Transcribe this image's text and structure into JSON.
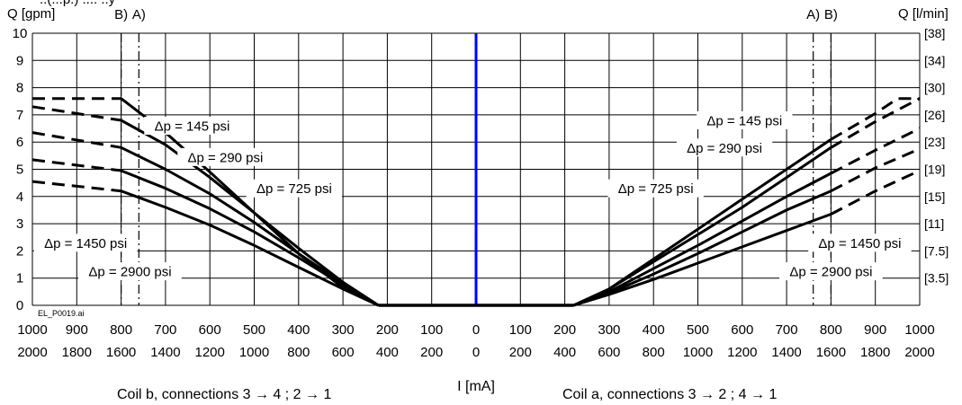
{
  "chart_data": {
    "type": "line",
    "top_clip_text": "..(...p.) .... ..y",
    "y_left_title": "Q [gpm]",
    "y_right_title": "Q [l/min]",
    "y_left_ticks": [
      "0",
      "1",
      "2",
      "3",
      "4",
      "5",
      "6",
      "7",
      "8",
      "9",
      "10"
    ],
    "y_right_ticks": [
      {
        "label": "[3.5]",
        "y": 1
      },
      {
        "label": "[7.5]",
        "y": 2
      },
      {
        "label": "[11]",
        "y": 3
      },
      {
        "label": "[15]",
        "y": 4
      },
      {
        "label": "[19]",
        "y": 5
      },
      {
        "label": "[23]",
        "y": 6
      },
      {
        "label": "[26]",
        "y": 7
      },
      {
        "label": "[30]",
        "y": 8
      },
      {
        "label": "[34]",
        "y": 9
      },
      {
        "label": "[38]",
        "y": 10
      }
    ],
    "ylim": [
      0,
      10
    ],
    "xlim": [
      -1000,
      1000
    ],
    "x_ticks_row1": [
      {
        "x": -1000,
        "label": "1000"
      },
      {
        "x": -900,
        "label": "900"
      },
      {
        "x": -800,
        "label": "800"
      },
      {
        "x": -700,
        "label": "700"
      },
      {
        "x": -600,
        "label": "600"
      },
      {
        "x": -500,
        "label": "500"
      },
      {
        "x": -400,
        "label": "400"
      },
      {
        "x": -300,
        "label": "300"
      },
      {
        "x": -200,
        "label": "200"
      },
      {
        "x": -100,
        "label": "100"
      },
      {
        "x": 0,
        "label": "0"
      },
      {
        "x": 100,
        "label": "100"
      },
      {
        "x": 200,
        "label": "200"
      },
      {
        "x": 300,
        "label": "300"
      },
      {
        "x": 400,
        "label": "400"
      },
      {
        "x": 500,
        "label": "500"
      },
      {
        "x": 600,
        "label": "600"
      },
      {
        "x": 700,
        "label": "700"
      },
      {
        "x": 800,
        "label": "800"
      },
      {
        "x": 900,
        "label": "900"
      },
      {
        "x": 1000,
        "label": "1000"
      }
    ],
    "x_ticks_row2": [
      {
        "x": -1000,
        "label": "2000"
      },
      {
        "x": -900,
        "label": "1800"
      },
      {
        "x": -800,
        "label": "1600"
      },
      {
        "x": -700,
        "label": "1400"
      },
      {
        "x": -600,
        "label": "1200"
      },
      {
        "x": -500,
        "label": "1000"
      },
      {
        "x": -400,
        "label": "800"
      },
      {
        "x": -300,
        "label": "600"
      },
      {
        "x": -200,
        "label": "400"
      },
      {
        "x": -100,
        "label": "200"
      },
      {
        "x": 0,
        "label": "0"
      },
      {
        "x": 100,
        "label": "200"
      },
      {
        "x": 200,
        "label": "400"
      },
      {
        "x": 300,
        "label": "600"
      },
      {
        "x": 400,
        "label": "800"
      },
      {
        "x": 500,
        "label": "1000"
      },
      {
        "x": 600,
        "label": "1200"
      },
      {
        "x": 700,
        "label": "1400"
      },
      {
        "x": 800,
        "label": "1600"
      },
      {
        "x": 900,
        "label": "1800"
      },
      {
        "x": 1000,
        "label": "2000"
      }
    ],
    "xlabel": "I [mA]",
    "coil_b_label": "Coil b, connections 3 → 4 ; 2 → 1",
    "coil_a_label": "Coil a, connections 3 → 2 ; 4 → 1",
    "watermark": "EL_P0019.ai",
    "limit_markers": [
      {
        "label": "B)",
        "x": -800
      },
      {
        "label": "A)",
        "x": -760
      },
      {
        "label": "A)",
        "x": 760
      },
      {
        "label": "B)",
        "x": 800
      }
    ],
    "zero_line_color": "#0000ff",
    "line_color": "#000000",
    "grid": true,
    "series": [
      {
        "name": "Δp = 145 psi",
        "left": {
          "solid": [
            [
              -800,
              7.6
            ],
            [
              -700,
              6.35
            ],
            [
              -600,
              4.9
            ],
            [
              -500,
              3.4
            ],
            [
              -400,
              1.9
            ],
            [
              -300,
              0.65
            ],
            [
              -220,
              0
            ]
          ],
          "dashed": [
            [
              -1000,
              7.6
            ],
            [
              -800,
              7.6
            ]
          ]
        },
        "right": {
          "solid": [
            [
              220,
              0
            ],
            [
              300,
              0.6
            ],
            [
              400,
              1.7
            ],
            [
              500,
              2.8
            ],
            [
              600,
              3.9
            ],
            [
              700,
              5.0
            ],
            [
              800,
              6.1
            ]
          ],
          "dashed": [
            [
              800,
              6.1
            ],
            [
              900,
              7.05
            ],
            [
              950,
              7.6
            ],
            [
              1000,
              7.6
            ]
          ]
        },
        "left_label_x": -640,
        "left_label_y": 6.6,
        "right_label_x": 605,
        "right_label_y": 6.8
      },
      {
        "name": "Δp = 290 psi",
        "left": {
          "solid": [
            [
              -800,
              6.8
            ],
            [
              -700,
              5.9
            ],
            [
              -600,
              4.7
            ],
            [
              -500,
              3.4
            ],
            [
              -400,
              2.1
            ],
            [
              -300,
              0.85
            ],
            [
              -220,
              0
            ]
          ],
          "dashed": [
            [
              -1000,
              7.3
            ],
            [
              -800,
              6.8
            ]
          ]
        },
        "right": {
          "solid": [
            [
              220,
              0
            ],
            [
              300,
              0.6
            ],
            [
              400,
              1.6
            ],
            [
              500,
              2.6
            ],
            [
              600,
              3.6
            ],
            [
              700,
              4.7
            ],
            [
              800,
              5.8
            ]
          ],
          "dashed": [
            [
              800,
              5.8
            ],
            [
              900,
              6.75
            ],
            [
              1000,
              7.6
            ]
          ]
        },
        "left_label_x": -565,
        "left_label_y": 5.45,
        "right_label_x": 560,
        "right_label_y": 5.8
      },
      {
        "name": "Δp = 725 psi",
        "left": {
          "solid": [
            [
              -800,
              5.8
            ],
            [
              -700,
              5.0
            ],
            [
              -600,
              4.1
            ],
            [
              -500,
              3.05
            ],
            [
              -400,
              1.9
            ],
            [
              -300,
              0.8
            ],
            [
              -220,
              0
            ]
          ],
          "dashed": [
            [
              -1000,
              6.35
            ],
            [
              -800,
              5.8
            ]
          ]
        },
        "right": {
          "solid": [
            [
              220,
              0
            ],
            [
              300,
              0.5
            ],
            [
              400,
              1.35
            ],
            [
              500,
              2.2
            ],
            [
              600,
              3.1
            ],
            [
              700,
              4.0
            ],
            [
              800,
              4.85
            ]
          ],
          "dashed": [
            [
              800,
              4.85
            ],
            [
              900,
              5.7
            ],
            [
              1000,
              6.5
            ]
          ]
        },
        "left_label_x": -410,
        "left_label_y": 4.3,
        "right_label_x": 405,
        "right_label_y": 4.3
      },
      {
        "name": "Δp = 1450 psi",
        "left": {
          "solid": [
            [
              -800,
              4.95
            ],
            [
              -700,
              4.3
            ],
            [
              -600,
              3.55
            ],
            [
              -500,
              2.7
            ],
            [
              -400,
              1.75
            ],
            [
              -300,
              0.75
            ],
            [
              -220,
              0
            ]
          ],
          "dashed": [
            [
              -1000,
              5.35
            ],
            [
              -800,
              4.95
            ]
          ]
        },
        "right": {
          "solid": [
            [
              220,
              0
            ],
            [
              300,
              0.45
            ],
            [
              400,
              1.15
            ],
            [
              500,
              1.9
            ],
            [
              600,
              2.7
            ],
            [
              700,
              3.5
            ],
            [
              800,
              4.2
            ]
          ],
          "dashed": [
            [
              800,
              4.2
            ],
            [
              900,
              5.05
            ],
            [
              1000,
              5.75
            ]
          ]
        },
        "left_label_x": -880,
        "left_label_y": 2.3,
        "right_label_x": 865,
        "right_label_y": 2.3
      },
      {
        "name": "Δp = 2900 psi",
        "left": {
          "solid": [
            [
              -800,
              4.2
            ],
            [
              -700,
              3.6
            ],
            [
              -600,
              2.95
            ],
            [
              -500,
              2.2
            ],
            [
              -400,
              1.4
            ],
            [
              -300,
              0.6
            ],
            [
              -220,
              0
            ]
          ],
          "dashed": [
            [
              -1000,
              4.55
            ],
            [
              -800,
              4.2
            ]
          ]
        },
        "right": {
          "solid": [
            [
              220,
              0
            ],
            [
              300,
              0.4
            ],
            [
              400,
              0.95
            ],
            [
              500,
              1.55
            ],
            [
              600,
              2.15
            ],
            [
              700,
              2.75
            ],
            [
              800,
              3.35
            ]
          ],
          "dashed": [
            [
              800,
              3.35
            ],
            [
              900,
              4.2
            ],
            [
              1000,
              4.95
            ]
          ]
        },
        "left_label_x": -780,
        "left_label_y": 1.25,
        "right_label_x": 800,
        "right_label_y": 1.25
      }
    ]
  }
}
